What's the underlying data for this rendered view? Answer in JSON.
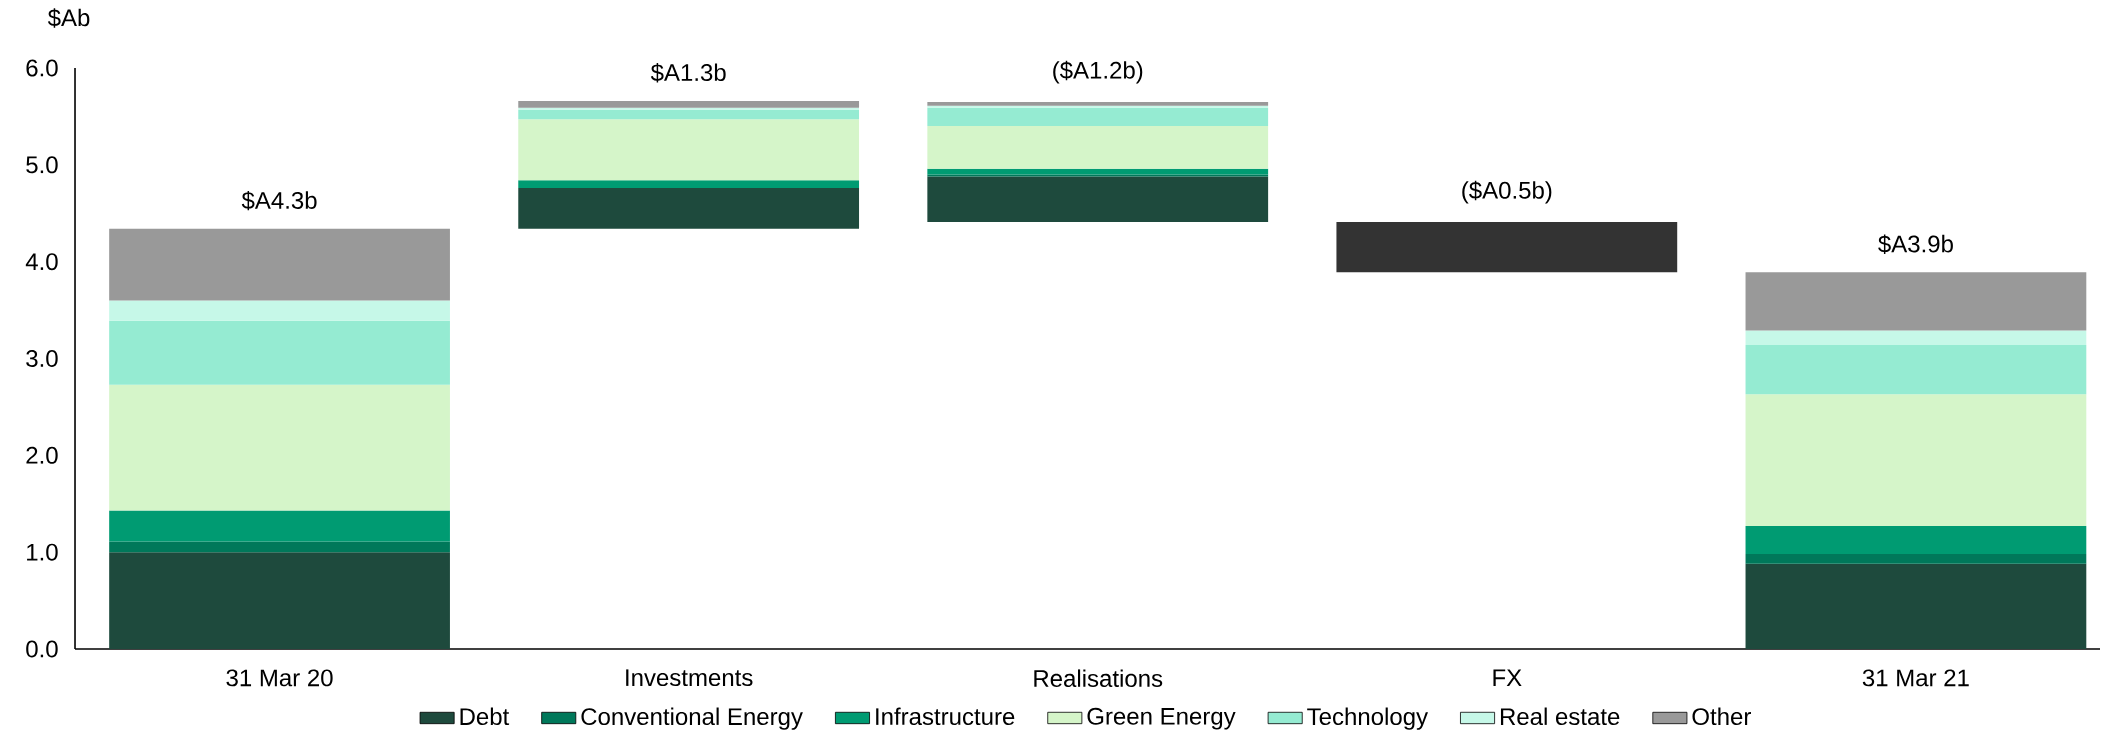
{
  "chart_data": {
    "type": "bar",
    "ylabel": "$Ab",
    "categories": [
      "31 Mar 20",
      "Investments",
      "Realisations",
      "FX",
      "31 Mar 21"
    ],
    "series": [
      {
        "name": "Debt",
        "color": "#1e4a3d",
        "values": [
          1.0,
          0.42,
          0.47,
          null,
          0.88
        ],
        "base": [
          0,
          4.34,
          4.41,
          null,
          0
        ]
      },
      {
        "name": "Conventional Energy",
        "color": "#00785a",
        "values": [
          0.11,
          null,
          0.02,
          null,
          0.1
        ],
        "base": [
          1.0,
          null,
          4.88,
          null,
          0.88
        ]
      },
      {
        "name": "Infrastructure",
        "color": "#009b72",
        "values": [
          0.32,
          0.08,
          0.06,
          null,
          0.29
        ],
        "base": [
          1.11,
          4.76,
          4.9,
          null,
          0.98
        ]
      },
      {
        "name": "Green Energy",
        "color": "#d5f5c9",
        "values": [
          1.3,
          0.63,
          0.44,
          null,
          1.36
        ],
        "base": [
          1.43,
          4.84,
          4.96,
          null,
          1.27
        ]
      },
      {
        "name": "Technology",
        "color": "#95ebd2",
        "values": [
          0.66,
          0.1,
          0.19,
          null,
          0.51
        ],
        "base": [
          2.73,
          5.47,
          5.4,
          null,
          2.63
        ]
      },
      {
        "name": "Real estate",
        "color": "#c6f8e8",
        "values": [
          0.21,
          0.02,
          0.02,
          null,
          0.15
        ],
        "base": [
          3.39,
          5.57,
          5.59,
          null,
          3.14
        ]
      },
      {
        "name": "Other",
        "color": "#999999",
        "values": [
          0.74,
          0.07,
          0.04,
          null,
          0.6
        ],
        "base": [
          3.6,
          5.59,
          5.61,
          null,
          3.29
        ]
      },
      {
        "color": "#333333",
        "values": [
          null,
          null,
          null,
          0.52,
          null
        ],
        "base": [
          null,
          null,
          null,
          3.89,
          null
        ]
      }
    ],
    "totals": [
      "$A4.3b",
      "$A1.3b",
      "($A1.2b)",
      "($A0.5b)",
      "$A3.9b"
    ],
    "ylim": [
      0,
      6
    ],
    "yticks": [
      {
        "value": 0,
        "label": "0.0"
      },
      {
        "value": 1,
        "label": "1.0"
      },
      {
        "value": 2,
        "label": "2.0"
      },
      {
        "value": 3,
        "label": "3.0"
      },
      {
        "value": 4,
        "label": "4.0"
      },
      {
        "value": 5,
        "label": "5.0"
      },
      {
        "value": 6,
        "label": "6.0"
      }
    ],
    "legend": "bottom"
  }
}
